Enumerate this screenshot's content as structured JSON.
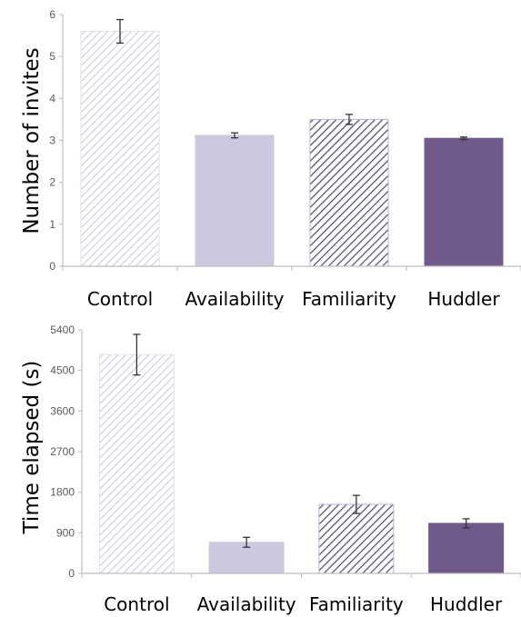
{
  "colors": {
    "control_hatch": "#cbc7db",
    "availability_fill": "#cdc7df",
    "familiarity_hatch": "#4e4570",
    "huddler_fill": "#705a8c",
    "axis": "#bdbdbd",
    "error_bar": "#333333"
  },
  "chart_data": [
    {
      "type": "bar",
      "title": "",
      "xlabel": "",
      "ylabel": "Number of invites",
      "categories": [
        "Control",
        "Availability",
        "Familiarity",
        "Huddler"
      ],
      "values": [
        5.6,
        3.12,
        3.5,
        3.05
      ],
      "error": [
        0.28,
        0.06,
        0.12,
        0.03
      ],
      "ylim": [
        0,
        6
      ],
      "yticks": [
        "0",
        "1",
        "2",
        "3",
        "4",
        "5",
        "6"
      ],
      "bar_styles": [
        "light-hatch",
        "light-solid",
        "dark-hatch",
        "dark-solid"
      ],
      "grid": false,
      "legend": "none"
    },
    {
      "type": "bar",
      "title": "",
      "xlabel": "",
      "ylabel": "Time elapsed (s)",
      "categories": [
        "Control",
        "Availability",
        "Familiarity",
        "Huddler"
      ],
      "values": [
        4850,
        690,
        1530,
        1110
      ],
      "error": [
        450,
        110,
        200,
        100
      ],
      "ylim": [
        0,
        5400
      ],
      "yticks": [
        "0",
        "900",
        "1800",
        "2700",
        "3600",
        "4500",
        "5400"
      ],
      "bar_styles": [
        "light-hatch",
        "light-solid",
        "dark-hatch",
        "dark-solid"
      ],
      "grid": false,
      "legend": "none"
    }
  ]
}
